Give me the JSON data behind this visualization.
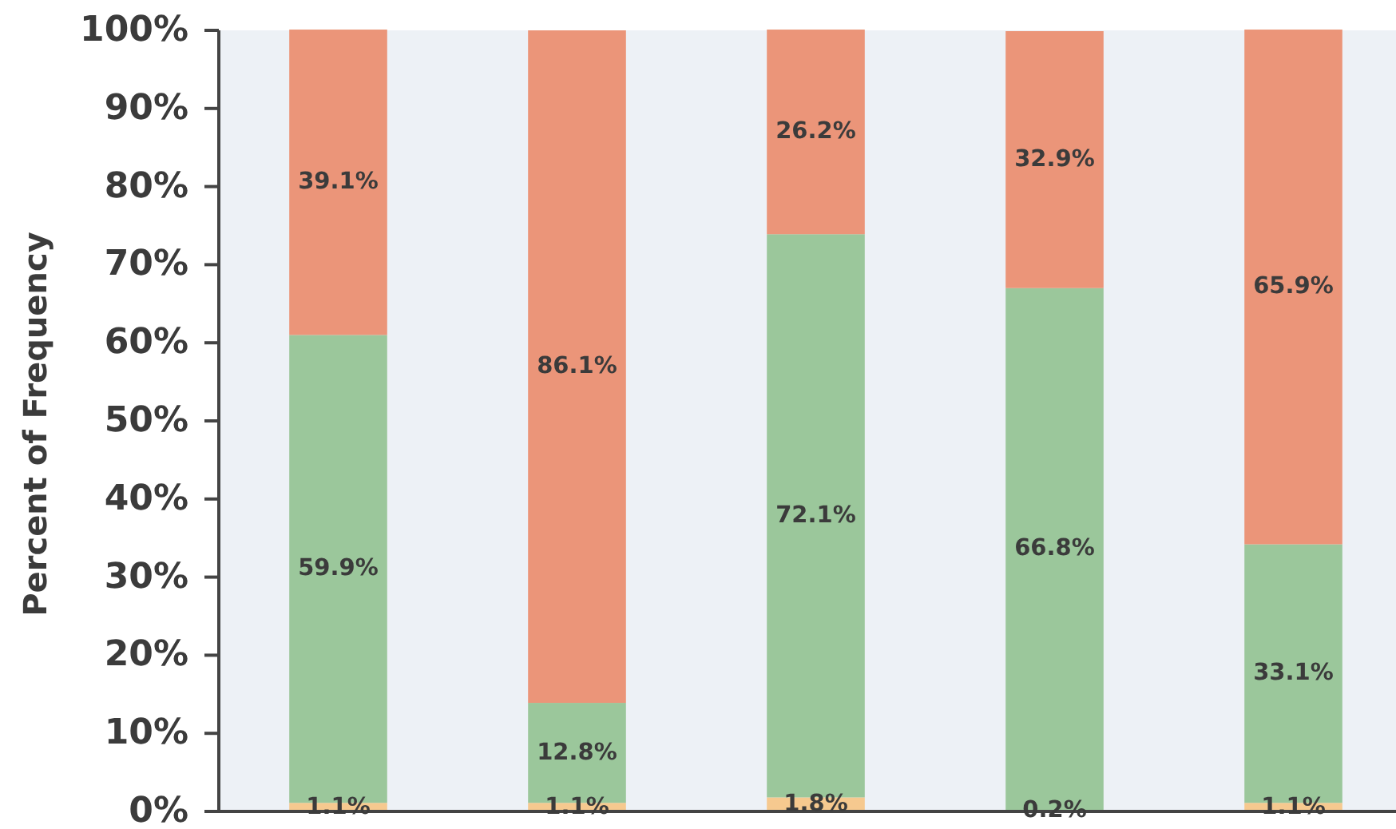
{
  "chart_data": {
    "type": "bar",
    "stacked": true,
    "ylabel": "Percent of Frequency",
    "categories": [
      null,
      null,
      null,
      null,
      null
    ],
    "series": [
      {
        "color": "#f6c98f",
        "values": [
          1.1,
          1.1,
          1.8,
          0.2,
          1.1
        ],
        "value_labels": [
          "1.1%",
          "1.1%",
          "1.8%",
          "0.2%",
          "1.1%"
        ]
      },
      {
        "color": "#9bc79b",
        "values": [
          59.9,
          12.8,
          72.1,
          66.8,
          33.1
        ],
        "value_labels": [
          "59.9%",
          "12.8%",
          "72.1%",
          "66.8%",
          "33.1%"
        ]
      },
      {
        "color": "#eb9579",
        "values": [
          39.1,
          86.1,
          26.2,
          32.9,
          65.9
        ],
        "value_labels": [
          "39.1%",
          "86.1%",
          "26.2%",
          "32.9%",
          "65.9%"
        ]
      }
    ],
    "ylim": [
      0,
      100
    ],
    "yticks": [
      {
        "value": 0,
        "label": "0%"
      },
      {
        "value": 10,
        "label": "10%"
      },
      {
        "value": 20,
        "label": "20%"
      },
      {
        "value": 30,
        "label": "30%"
      },
      {
        "value": 40,
        "label": "40%"
      },
      {
        "value": 50,
        "label": "50%"
      },
      {
        "value": 60,
        "label": "60%"
      },
      {
        "value": 70,
        "label": "70%"
      },
      {
        "value": 80,
        "label": "80%"
      },
      {
        "value": 90,
        "label": "90%"
      },
      {
        "value": 100,
        "label": "100%"
      }
    ],
    "tick_labels": "y"
  }
}
